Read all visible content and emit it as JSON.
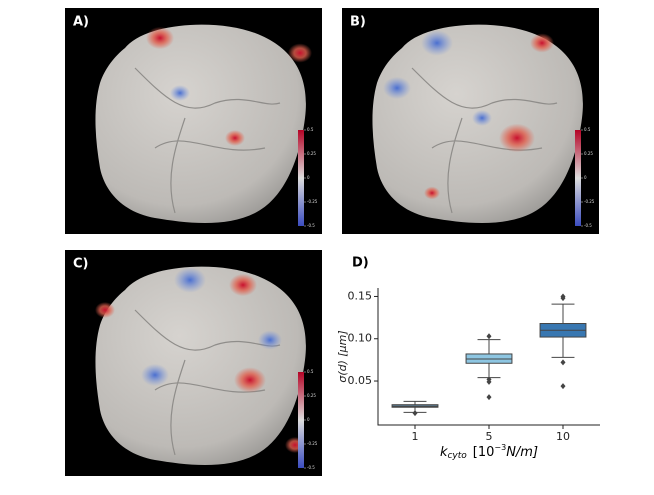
{
  "panel_labels": [
    "A)",
    "B)",
    "C)",
    "D)"
  ],
  "colorbar": {
    "ticks": [
      0.5,
      0.25,
      0,
      -0.25,
      -0.5
    ]
  },
  "chart_data": {
    "type": "box",
    "categories": [
      "1",
      "5",
      "10"
    ],
    "colors": [
      "#5f849c",
      "#8ec6e2",
      "#3877b1"
    ],
    "boxes": [
      {
        "whislo": 0.013,
        "q1": 0.019,
        "med": 0.02,
        "q3": 0.022,
        "whishi": 0.026,
        "fliers": [
          0.012
        ]
      },
      {
        "whislo": 0.054,
        "q1": 0.071,
        "med": 0.076,
        "q3": 0.082,
        "whishi": 0.099,
        "fliers": [
          0.103,
          0.052,
          0.049,
          0.031
        ]
      },
      {
        "whislo": 0.078,
        "q1": 0.102,
        "med": 0.11,
        "q3": 0.118,
        "whishi": 0.141,
        "fliers": [
          0.148,
          0.15,
          0.072,
          0.044
        ]
      }
    ],
    "ylim": [
      -0.002,
      0.16
    ],
    "yticks": [
      0.05,
      {
        "value": 0.1,
        "label": "0.10"
      },
      0.15
    ],
    "y_label": "σ(d)  [μm]",
    "x_label": {
      "main": "k",
      "sub": "cyto",
      "pre": "[10",
      "sup": "−3",
      "post": "N/m]"
    }
  }
}
